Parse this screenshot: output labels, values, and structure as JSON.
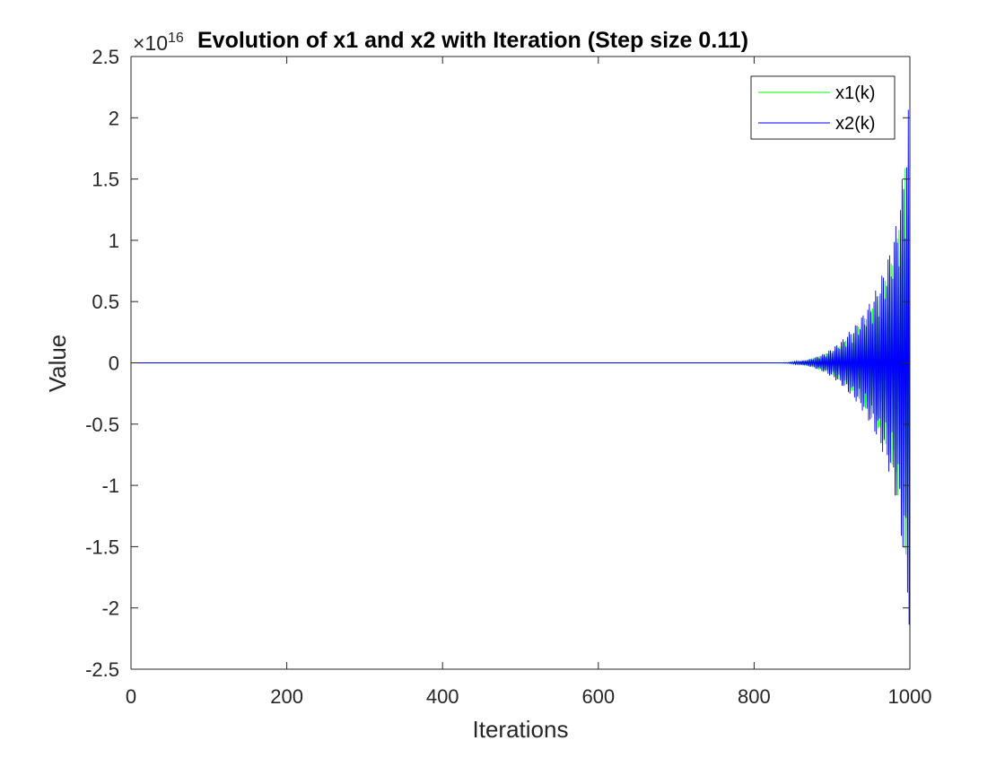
{
  "chart_data": {
    "type": "line",
    "title": "Evolution of x1 and x2 with Iteration (Step size 0.11)",
    "xlabel": "Iterations",
    "ylabel": "Value",
    "y_exponent": {
      "base": "×10",
      "power": "16"
    },
    "xlim": [
      0,
      1000
    ],
    "ylim": [
      -2.5e+16,
      2.5e+16
    ],
    "x_ticks": [
      0,
      200,
      400,
      600,
      800,
      1000
    ],
    "x_tick_labels": [
      "0",
      "200",
      "400",
      "600",
      "800",
      "1000"
    ],
    "y_ticks": [
      2.5e+16,
      2e+16,
      1.5e+16,
      1e+16,
      5000000000000000.0,
      0,
      -5000000000000000.0,
      -1e+16,
      -1.5e+16,
      -2e+16,
      -2.5e+16
    ],
    "y_tick_labels": [
      "2.5",
      "2",
      "1.5",
      "1",
      "0.5",
      "0",
      "-0.5",
      "-1",
      "-1.5",
      "-2",
      "-2.5"
    ],
    "grid": false,
    "legend": {
      "placement": "top-right",
      "entries": [
        "x1(k)",
        "x2(k)"
      ]
    },
    "series": [
      {
        "name": "x1(k)",
        "color": "#00ff00",
        "behavior": "oscillating with exponentially growing amplitude, near zero until about iteration 820",
        "envelope_x": [
          0,
          820,
          850,
          880,
          900,
          920,
          940,
          960,
          980,
          990,
          1000
        ],
        "envelope_abs_max": [
          0,
          1000000000000.0,
          100000000000000.0,
          500000000000000.0,
          1000000000000000.0,
          2000000000000000.0,
          3500000000000000.0,
          5500000000000000.0,
          9000000000000000.0,
          1.3e+16,
          2.2e+16
        ]
      },
      {
        "name": "x2(k)",
        "color": "#0000ff",
        "behavior": "oscillating with exponentially growing amplitude, near zero until about iteration 820",
        "envelope_x": [
          0,
          820,
          850,
          880,
          900,
          920,
          940,
          960,
          980,
          990,
          1000
        ],
        "envelope_abs_max": [
          0,
          1000000000000.0,
          100000000000000.0,
          500000000000000.0,
          1200000000000000.0,
          2400000000000000.0,
          4000000000000000.0,
          6500000000000000.0,
          1.05e+16,
          1.5e+16,
          2.25e+16
        ]
      }
    ]
  }
}
